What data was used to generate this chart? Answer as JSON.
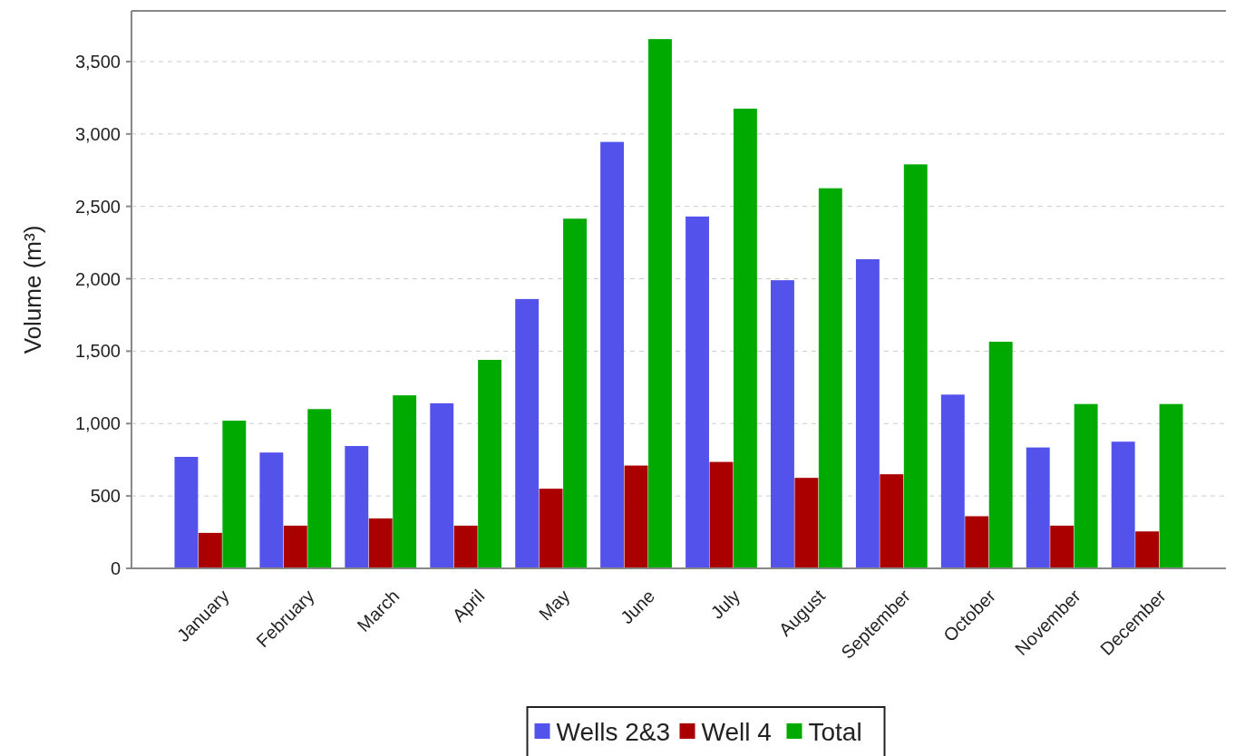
{
  "chart_data": {
    "type": "bar",
    "ylabel": "Volume (m³)",
    "categories": [
      "January",
      "February",
      "March",
      "April",
      "May",
      "June",
      "July",
      "August",
      "September",
      "October",
      "November",
      "December"
    ],
    "series": [
      {
        "name": "Wells 2&3",
        "color": "#5353ec",
        "values": [
          770,
          800,
          845,
          1140,
          1860,
          2945,
          2430,
          1990,
          2135,
          1200,
          835,
          875
        ]
      },
      {
        "name": "Well 4",
        "color": "#aa0000",
        "values": [
          245,
          295,
          345,
          295,
          550,
          710,
          735,
          625,
          650,
          360,
          295,
          255
        ]
      },
      {
        "name": "Total",
        "color": "#00aa00",
        "values": [
          1020,
          1100,
          1195,
          1440,
          2415,
          3655,
          3175,
          2625,
          2790,
          1565,
          1135,
          1135
        ]
      }
    ],
    "ylim": [
      0,
      3850
    ],
    "yticks": [
      0,
      {
        "value": 500,
        "label": "500"
      },
      {
        "value": 1000,
        "label": "1,000"
      },
      {
        "value": 1500,
        "label": "1,500"
      },
      {
        "value": 2000,
        "label": "2,000"
      },
      {
        "value": 2500,
        "label": "2,500"
      },
      {
        "value": 3000,
        "label": "3,000"
      },
      {
        "value": 3500,
        "label": "3,500"
      }
    ],
    "grid": "y",
    "legend": "bottom"
  }
}
